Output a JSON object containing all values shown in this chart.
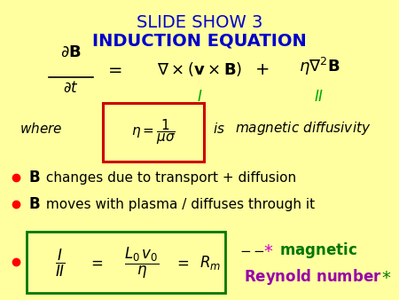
{
  "background_color": "#FFFFA0",
  "title1": "SLIDE SHOW 3",
  "title1_color": "#0000CC",
  "title2": "INDUCTION EQUATION",
  "title2_color": "#0000CC",
  "bullet_color": "#FF0000",
  "bullet1_rest": " changes due to transport + diffusion",
  "bullet2_rest": " moves with plasma / diffuses through it",
  "green_color": "#00AA00",
  "red_box_color": "#CC0000",
  "magenta_color": "#CC00CC",
  "purple_color": "#9900AA",
  "black_color": "#000000",
  "dark_green_color": "#007700"
}
